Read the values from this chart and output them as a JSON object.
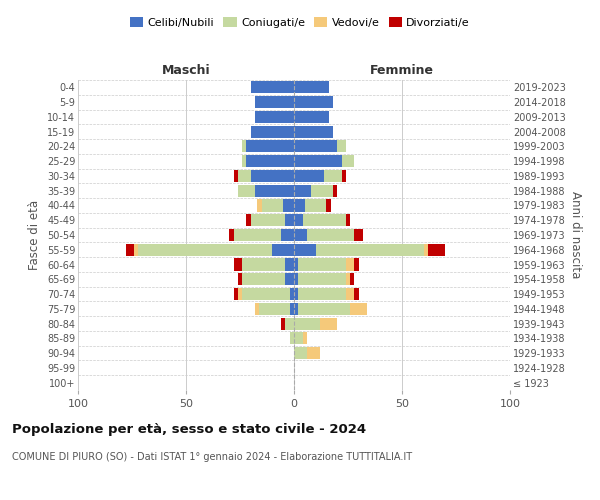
{
  "age_groups": [
    "100+",
    "95-99",
    "90-94",
    "85-89",
    "80-84",
    "75-79",
    "70-74",
    "65-69",
    "60-64",
    "55-59",
    "50-54",
    "45-49",
    "40-44",
    "35-39",
    "30-34",
    "25-29",
    "20-24",
    "15-19",
    "10-14",
    "5-9",
    "0-4"
  ],
  "birth_years": [
    "≤ 1923",
    "1924-1928",
    "1929-1933",
    "1934-1938",
    "1939-1943",
    "1944-1948",
    "1949-1953",
    "1954-1958",
    "1959-1963",
    "1964-1968",
    "1969-1973",
    "1974-1978",
    "1979-1983",
    "1984-1988",
    "1989-1993",
    "1994-1998",
    "1999-2003",
    "2004-2008",
    "2009-2013",
    "2014-2018",
    "2019-2023"
  ],
  "colors": {
    "celibi": "#4472c4",
    "coniugati": "#c5d9a0",
    "vedovi": "#f5c97a",
    "divorziati": "#c00000"
  },
  "maschi": {
    "celibi": [
      0,
      0,
      0,
      0,
      0,
      2,
      2,
      4,
      4,
      10,
      6,
      4,
      5,
      18,
      20,
      22,
      22,
      20,
      18,
      18,
      20
    ],
    "coniugati": [
      0,
      0,
      0,
      2,
      4,
      14,
      22,
      20,
      20,
      62,
      22,
      16,
      10,
      8,
      6,
      2,
      2,
      0,
      0,
      0,
      0
    ],
    "vedovi": [
      0,
      0,
      0,
      0,
      0,
      2,
      2,
      0,
      0,
      2,
      0,
      0,
      2,
      0,
      0,
      0,
      0,
      0,
      0,
      0,
      0
    ],
    "divorziati": [
      0,
      0,
      0,
      0,
      2,
      0,
      2,
      2,
      4,
      4,
      2,
      2,
      0,
      0,
      2,
      0,
      0,
      0,
      0,
      0,
      0
    ]
  },
  "femmine": {
    "celibi": [
      0,
      0,
      0,
      0,
      0,
      2,
      2,
      2,
      2,
      10,
      6,
      4,
      5,
      8,
      14,
      22,
      20,
      18,
      16,
      18,
      16
    ],
    "coniugati": [
      0,
      0,
      6,
      4,
      12,
      24,
      22,
      22,
      22,
      50,
      22,
      20,
      10,
      10,
      8,
      6,
      4,
      0,
      0,
      0,
      0
    ],
    "vedovi": [
      0,
      0,
      6,
      2,
      8,
      8,
      4,
      2,
      4,
      2,
      0,
      0,
      0,
      0,
      0,
      0,
      0,
      0,
      0,
      0,
      0
    ],
    "divorziati": [
      0,
      0,
      0,
      0,
      0,
      0,
      2,
      2,
      2,
      8,
      4,
      2,
      2,
      2,
      2,
      0,
      0,
      0,
      0,
      0,
      0
    ]
  },
  "xlim": 100,
  "title": "Popolazione per età, sesso e stato civile - 2024",
  "subtitle": "COMUNE DI PIURO (SO) - Dati ISTAT 1° gennaio 2024 - Elaborazione TUTTITALIA.IT",
  "ylabel_left": "Fasce di età",
  "ylabel_right": "Anni di nascita",
  "xlabel_maschi": "Maschi",
  "xlabel_femmine": "Femmine",
  "legend_labels": [
    "Celibi/Nubili",
    "Coniugati/e",
    "Vedovi/e",
    "Divorziati/e"
  ],
  "bg_color": "#ffffff",
  "grid_color": "#cccccc"
}
